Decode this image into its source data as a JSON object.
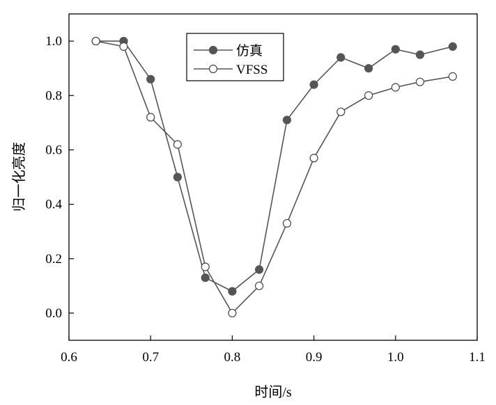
{
  "chart_data": {
    "type": "line",
    "title": "",
    "xlabel": "时间/s",
    "ylabel": "归一化亮度",
    "xlim": [
      0.6,
      1.1
    ],
    "ylim": [
      -0.1,
      1.1
    ],
    "xticks": [
      0.6,
      0.7,
      0.8,
      0.9,
      1.0,
      1.1
    ],
    "xtick_labels": [
      "0.6",
      "0.7",
      "0.8",
      "0.9",
      "1.0",
      "1.1"
    ],
    "yticks": [
      0.0,
      0.2,
      0.4,
      0.6,
      0.8,
      1.0
    ],
    "ytick_labels": [
      "0.0",
      "0.2",
      "0.4",
      "0.6",
      "0.8",
      "1.0"
    ],
    "grid": false,
    "legend_position": "top-center",
    "series": [
      {
        "name": "仿真",
        "marker": "filled-circle",
        "color": "#555555",
        "x": [
          0.633,
          0.667,
          0.7,
          0.733,
          0.767,
          0.8,
          0.833,
          0.867,
          0.9,
          0.933,
          0.967,
          1.0,
          1.03,
          1.07
        ],
        "y": [
          1.0,
          1.0,
          0.86,
          0.5,
          0.13,
          0.08,
          0.16,
          0.71,
          0.84,
          0.94,
          0.9,
          0.97,
          0.95,
          0.98
        ]
      },
      {
        "name": "VFSS",
        "marker": "open-circle",
        "color": "#555555",
        "x": [
          0.633,
          0.667,
          0.7,
          0.733,
          0.767,
          0.8,
          0.833,
          0.867,
          0.9,
          0.933,
          0.967,
          1.0,
          1.03,
          1.07
        ],
        "y": [
          1.0,
          0.98,
          0.72,
          0.62,
          0.17,
          0.0,
          0.1,
          0.33,
          0.57,
          0.74,
          0.8,
          0.83,
          0.85,
          0.87
        ]
      }
    ]
  }
}
